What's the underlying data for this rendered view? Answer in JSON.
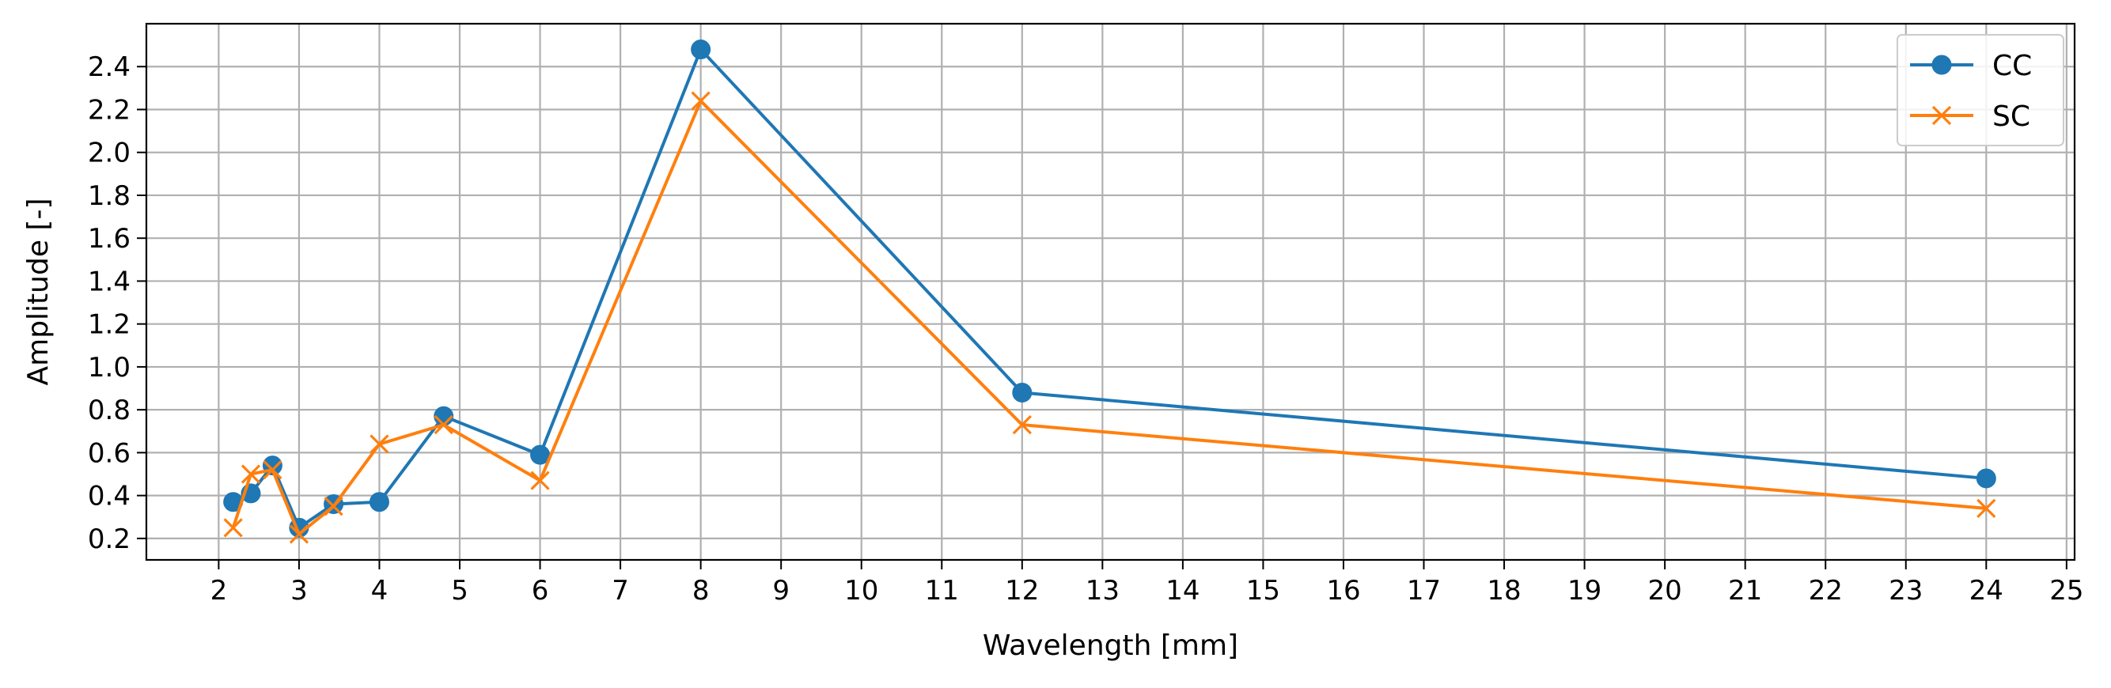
{
  "chart_data": {
    "type": "line",
    "title": "",
    "xlabel": "Wavelength [mm]",
    "ylabel": "Amplitude [-]",
    "xlim": [
      1.1,
      25.1
    ],
    "ylim": [
      0.1,
      2.6
    ],
    "xticks": [
      2,
      3,
      4,
      5,
      6,
      7,
      8,
      9,
      10,
      11,
      12,
      13,
      14,
      15,
      16,
      17,
      18,
      19,
      20,
      21,
      22,
      23,
      24,
      25
    ],
    "yticks": [
      0.2,
      0.4,
      0.6,
      0.8,
      1.0,
      1.2,
      1.4,
      1.6,
      1.8,
      2.0,
      2.2,
      2.4
    ],
    "ytick_labels": [
      "0.2",
      "0.4",
      "0.6",
      "0.8",
      "1.0",
      "1.2",
      "1.4",
      "1.6",
      "1.8",
      "2.0",
      "2.2",
      "2.4"
    ],
    "grid": true,
    "legend_position": "top-right",
    "series": [
      {
        "name": "CC",
        "color": "#1f77b4",
        "marker": "circle",
        "x": [
          2.18,
          2.4,
          2.67,
          3.0,
          3.43,
          4.0,
          4.8,
          6.0,
          8.0,
          12.0,
          24.0
        ],
        "y": [
          0.37,
          0.41,
          0.54,
          0.25,
          0.36,
          0.37,
          0.77,
          0.59,
          2.48,
          0.88,
          0.48
        ]
      },
      {
        "name": "SC",
        "color": "#ff7f0e",
        "marker": "x",
        "x": [
          2.18,
          2.4,
          2.67,
          3.0,
          3.43,
          4.0,
          4.8,
          6.0,
          8.0,
          12.0,
          24.0
        ],
        "y": [
          0.25,
          0.5,
          0.52,
          0.22,
          0.35,
          0.64,
          0.73,
          0.47,
          2.24,
          0.73,
          0.34
        ]
      }
    ]
  }
}
